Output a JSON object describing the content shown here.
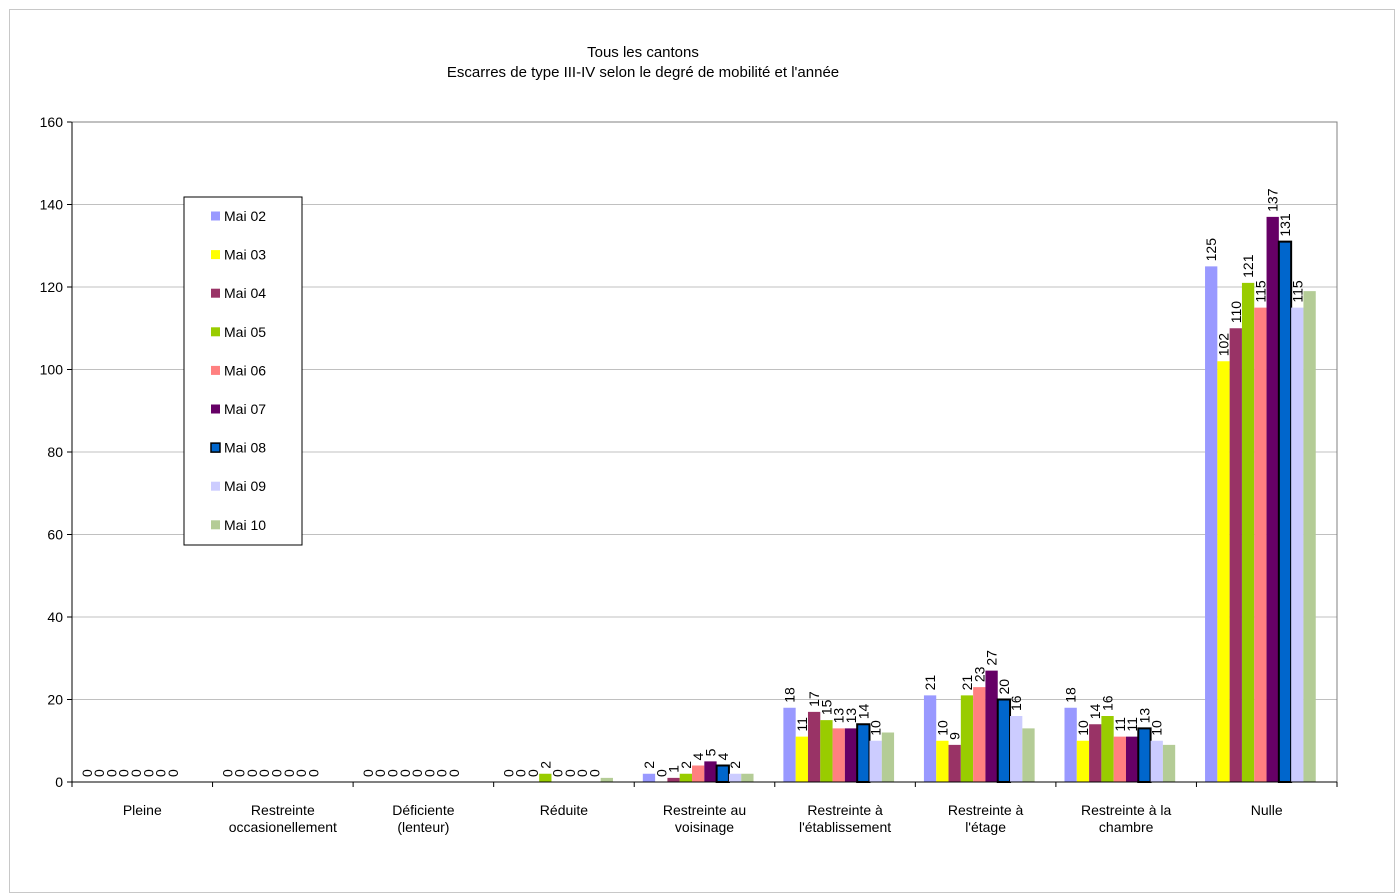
{
  "chart_data": {
    "type": "bar",
    "title": "Tous les cantons",
    "subtitle": "Escarres de type III-IV selon le degré de mobilité et l'année",
    "xlabel": "",
    "ylabel": "",
    "ylim": [
      0,
      160
    ],
    "yticks": [
      0,
      20,
      40,
      60,
      80,
      100,
      120,
      140,
      160
    ],
    "grid": true,
    "legend_position": "left",
    "categories": [
      [
        "Pleine"
      ],
      [
        "Restreinte",
        "occasionellement"
      ],
      [
        "Déficiente",
        "(lenteur)"
      ],
      [
        "Réduite"
      ],
      [
        "Restreinte au",
        "voisinage"
      ],
      [
        "Restreinte à",
        "l'établissement"
      ],
      [
        "Restreinte à",
        "l'étage"
      ],
      [
        "Restreinte à la",
        "chambre"
      ],
      [
        "Nulle"
      ]
    ],
    "series": [
      {
        "name": "Mai 02",
        "color": "#9999ff",
        "values": [
          0,
          0,
          0,
          0,
          2,
          18,
          21,
          18,
          125
        ],
        "labels": [
          "0",
          "0",
          "0",
          "0",
          "2",
          "18",
          "21",
          "18",
          "125"
        ]
      },
      {
        "name": "Mai 03",
        "color": "#ffff00",
        "values": [
          0,
          0,
          0,
          0,
          0,
          11,
          10,
          10,
          102
        ],
        "labels": [
          "0",
          "0",
          "0",
          "0",
          "0",
          "11",
          "10",
          "10",
          "102"
        ]
      },
      {
        "name": "Mai 04",
        "color": "#993366",
        "values": [
          0,
          0,
          0,
          0,
          1,
          17,
          9,
          14,
          110
        ],
        "labels": [
          "0",
          "0",
          "0",
          "0",
          "1",
          "17",
          "9",
          "14",
          "110"
        ]
      },
      {
        "name": "Mai 05",
        "color": "#99cc00",
        "values": [
          0,
          0,
          0,
          2,
          2,
          15,
          21,
          16,
          121
        ],
        "labels": [
          "0",
          "0",
          "0",
          "2",
          "2",
          "15",
          "21",
          "16",
          "121"
        ]
      },
      {
        "name": "Mai 06",
        "color": "#ff8080",
        "values": [
          0,
          0,
          0,
          0,
          4,
          13,
          23,
          11,
          115
        ],
        "labels": [
          "0",
          "0",
          "0",
          "0",
          "4",
          "13",
          "23",
          "11",
          "115"
        ]
      },
      {
        "name": "Mai 07",
        "color": "#660066",
        "values": [
          0,
          0,
          0,
          0,
          5,
          13,
          27,
          11,
          137
        ],
        "labels": [
          "0",
          "0",
          "0",
          "0",
          "5",
          "13",
          "27",
          "11",
          "137"
        ]
      },
      {
        "name": "Mai 08",
        "color": "#0066cc",
        "outlined": true,
        "values": [
          0,
          0,
          0,
          0,
          4,
          14,
          20,
          13,
          131
        ],
        "labels": [
          "0",
          "0",
          "0",
          "0",
          "4",
          "14",
          "20",
          "13",
          "131"
        ]
      },
      {
        "name": "Mai 09",
        "color": "#ccccff",
        "values": [
          0,
          0,
          0,
          0,
          2,
          10,
          16,
          10,
          115
        ],
        "labels": [
          "0",
          "0",
          "0",
          "0",
          "2",
          "10",
          "16",
          "10",
          "115"
        ]
      },
      {
        "name": "Mai 10",
        "color": "#b4cc96",
        "values": [
          0,
          0,
          0,
          1,
          2,
          12,
          13,
          9,
          119
        ],
        "labels": [
          "",
          "",
          "",
          "",
          "",
          "",
          "",
          "",
          ""
        ]
      }
    ]
  }
}
